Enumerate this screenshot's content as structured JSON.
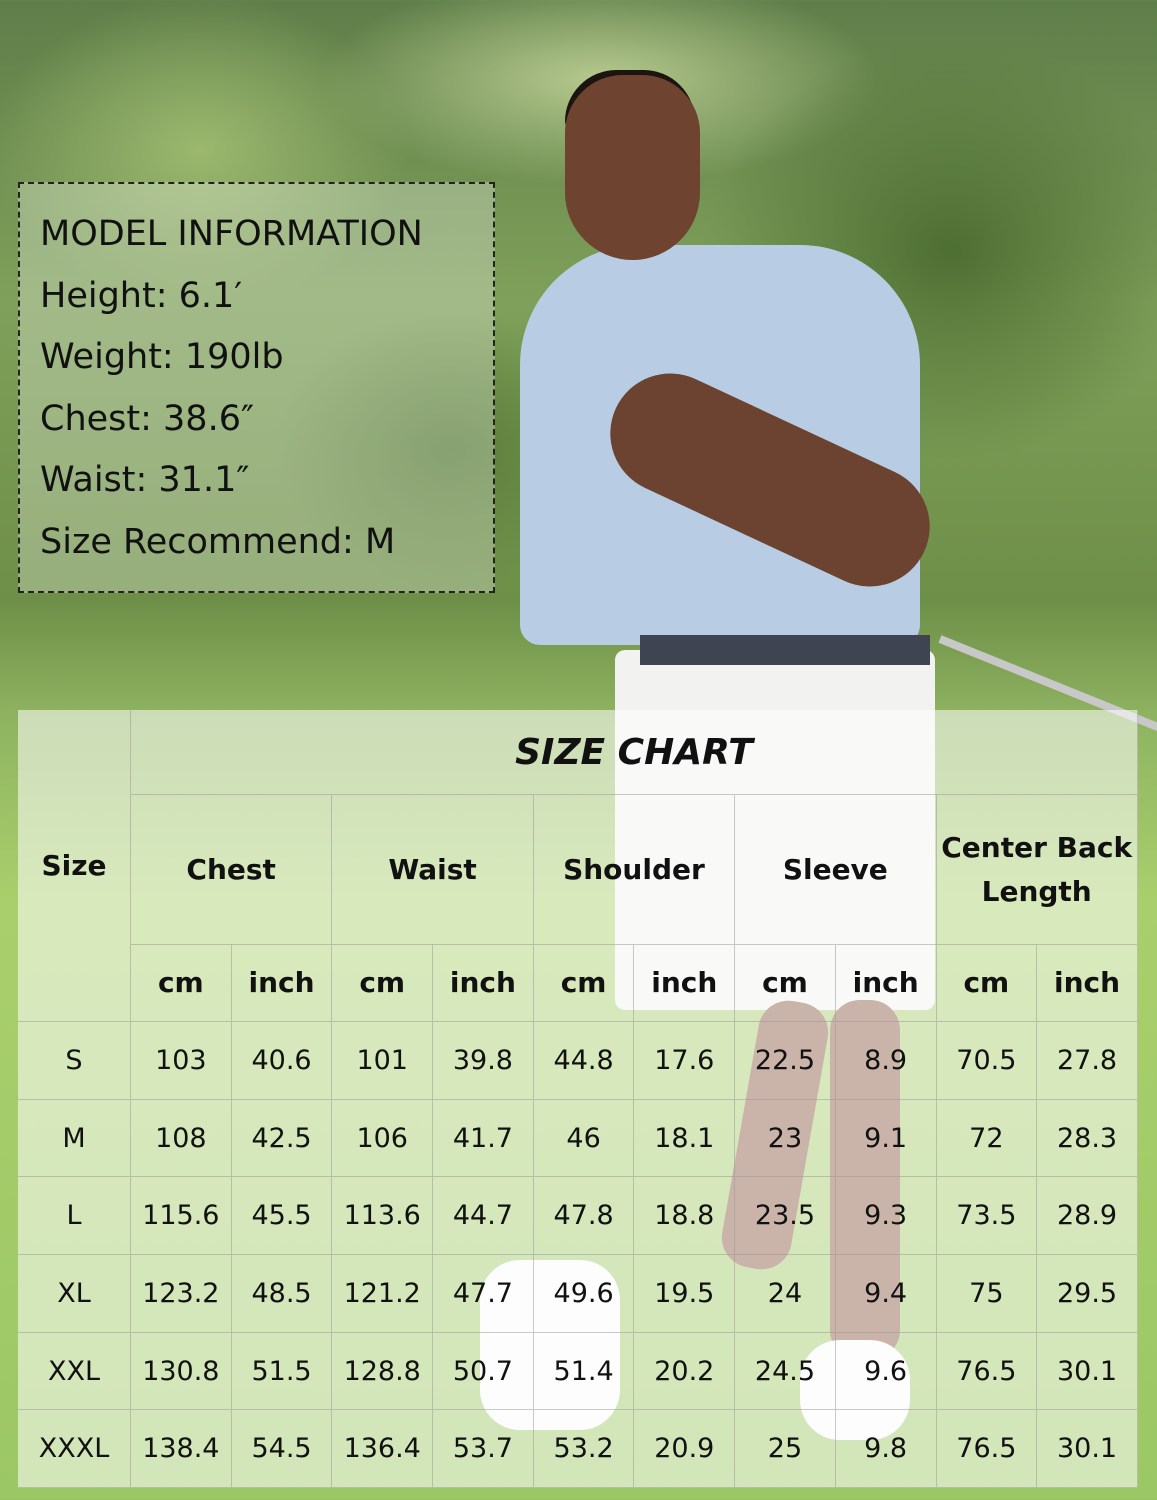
{
  "model_info": {
    "title": "MODEL INFORMATION",
    "lines": [
      "Height: 6.1′",
      "Weight: 190lb",
      "Chest: 38.6″",
      "Waist: 31.1″",
      "Size Recommend: M"
    ]
  },
  "size_chart": {
    "title": "SIZE CHART",
    "size_header": "Size",
    "groups": [
      "Chest",
      "Waist",
      "Shoulder",
      "Sleeve",
      "Center Back Length"
    ],
    "units": [
      "cm",
      "inch"
    ],
    "rows": [
      [
        "S",
        "103",
        "40.6",
        "101",
        "39.8",
        "44.8",
        "17.6",
        "22.5",
        "8.9",
        "70.5",
        "27.8"
      ],
      [
        "M",
        "108",
        "42.5",
        "106",
        "41.7",
        "46",
        "18.1",
        "23",
        "9.1",
        "72",
        "28.3"
      ],
      [
        "L",
        "115.6",
        "45.5",
        "113.6",
        "44.7",
        "47.8",
        "18.8",
        "23.5",
        "9.3",
        "73.5",
        "28.9"
      ],
      [
        "XL",
        "123.2",
        "48.5",
        "121.2",
        "47.7",
        "49.6",
        "19.5",
        "24",
        "9.4",
        "75",
        "29.5"
      ],
      [
        "XXL",
        "130.8",
        "51.5",
        "128.8",
        "50.7",
        "51.4",
        "20.2",
        "24.5",
        "9.6",
        "76.5",
        "30.1"
      ],
      [
        "XXXL",
        "138.4",
        "54.5",
        "136.4",
        "53.7",
        "53.2",
        "20.9",
        "25",
        "9.8",
        "76.5",
        "30.1"
      ]
    ]
  }
}
